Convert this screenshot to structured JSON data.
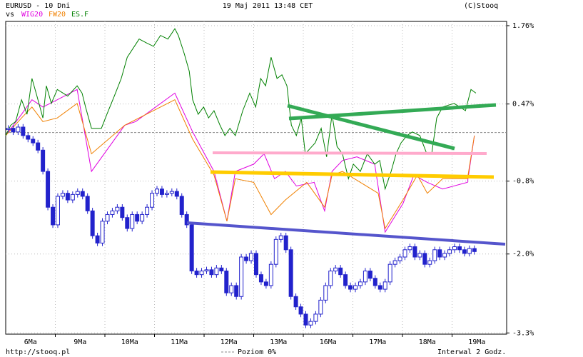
{
  "chart_data": {
    "type": "candlestick",
    "title": "EURUSD - 10 Dni",
    "vs_label": "vs",
    "date_label": "19 Maj 2011 13:48 CET",
    "copyright": "(C)Stooq",
    "source": "http://stooq.pl",
    "interval": "Interwal 2 Godz.",
    "reference": {
      "label": "Poziom 0%",
      "value": 0
    },
    "xlim": [
      0,
      10.1
    ],
    "xticks": [
      1,
      2,
      3,
      4,
      5,
      6,
      7,
      8,
      9
    ],
    "categories": [
      "6Ma",
      "9Ma",
      "10Ma",
      "11Ma",
      "12Ma",
      "13Ma",
      "16Ma",
      "17Ma",
      "18Ma",
      "19Ma"
    ],
    "ylim": [
      -3.32,
      1.83
    ],
    "yticks": [
      {
        "value": 1.76,
        "label": "1.76%"
      },
      {
        "value": 0.47,
        "label": "0.47%"
      },
      {
        "value": -0.8,
        "label": "-0.8%"
      },
      {
        "value": -2.0,
        "label": "-2.0%"
      },
      {
        "value": -3.3,
        "label": "-3.3%"
      }
    ],
    "grid": true,
    "candles": {
      "color": "#2222cc",
      "x": [
        0.05,
        0.15,
        0.25,
        0.35,
        0.45,
        0.55,
        0.65,
        0.75,
        0.85,
        0.95,
        1.05,
        1.15,
        1.25,
        1.35,
        1.45,
        1.55,
        1.65,
        1.75,
        1.85,
        1.95,
        2.05,
        2.15,
        2.25,
        2.35,
        2.45,
        2.55,
        2.65,
        2.75,
        2.85,
        2.95,
        3.05,
        3.15,
        3.25,
        3.35,
        3.45,
        3.55,
        3.65,
        3.75,
        3.85,
        3.95,
        4.05,
        4.15,
        4.25,
        4.35,
        4.45,
        4.55,
        4.65,
        4.75,
        4.85,
        4.95,
        5.05,
        5.15,
        5.25,
        5.35,
        5.45,
        5.55,
        5.65,
        5.75,
        5.85,
        5.95,
        6.05,
        6.15,
        6.25,
        6.35,
        6.45,
        6.55,
        6.65,
        6.75,
        6.85,
        6.95,
        7.05,
        7.15,
        7.25,
        7.35,
        7.45,
        7.55,
        7.65,
        7.75,
        7.85,
        7.95,
        8.05,
        8.15,
        8.25,
        8.35,
        8.45,
        8.55,
        8.65,
        8.75,
        8.85,
        8.95,
        9.05,
        9.15,
        9.25,
        9.35,
        9.45
      ],
      "open": [
        0.05,
        0.07,
        0.01,
        0.09,
        -0.05,
        -0.11,
        -0.17,
        -0.29,
        -0.64,
        -1.23,
        -1.52,
        -1.05,
        -1.0,
        -1.11,
        -1.02,
        -0.97,
        -1.05,
        -1.29,
        -1.7,
        -1.82,
        -1.46,
        -1.35,
        -1.29,
        -1.23,
        -1.4,
        -1.58,
        -1.35,
        -1.46,
        -1.35,
        -1.23,
        -1.0,
        -0.93,
        -1.02,
        -1.0,
        -0.97,
        -1.05,
        -1.35,
        -1.52,
        -2.28,
        -2.34,
        -2.28,
        -2.26,
        -2.34,
        -2.23,
        -2.28,
        -2.64,
        -2.52,
        -2.7,
        -2.05,
        -2.11,
        -1.99,
        -2.34,
        -2.46,
        -2.52,
        -2.17,
        -1.76,
        -1.7,
        -1.93,
        -2.7,
        -2.87,
        -2.99,
        -3.17,
        -3.11,
        -2.99,
        -2.76,
        -2.52,
        -2.28,
        -2.23,
        -2.34,
        -2.52,
        -2.58,
        -2.52,
        -2.46,
        -2.28,
        -2.4,
        -2.52,
        -2.58,
        -2.46,
        -2.17,
        -2.11,
        -2.05,
        -1.93,
        -1.88,
        -2.05,
        -1.99,
        -2.17,
        -2.11,
        -1.93,
        -2.05,
        -1.99,
        -1.93,
        -1.88,
        -1.93,
        -1.99,
        -1.91
      ],
      "close": [
        0.07,
        0.01,
        0.09,
        -0.05,
        -0.11,
        -0.17,
        -0.29,
        -0.64,
        -1.23,
        -1.52,
        -1.05,
        -1.0,
        -1.11,
        -1.02,
        -0.97,
        -1.05,
        -1.29,
        -1.7,
        -1.82,
        -1.46,
        -1.35,
        -1.29,
        -1.23,
        -1.4,
        -1.58,
        -1.35,
        -1.46,
        -1.35,
        -1.23,
        -1.0,
        -0.93,
        -1.02,
        -1.0,
        -0.97,
        -1.05,
        -1.35,
        -1.52,
        -2.28,
        -2.34,
        -2.28,
        -2.26,
        -2.34,
        -2.23,
        -2.28,
        -2.64,
        -2.52,
        -2.7,
        -2.05,
        -2.11,
        -1.99,
        -2.34,
        -2.46,
        -2.52,
        -2.17,
        -1.76,
        -1.7,
        -1.93,
        -2.7,
        -2.87,
        -2.99,
        -3.17,
        -3.11,
        -2.99,
        -2.76,
        -2.52,
        -2.28,
        -2.23,
        -2.34,
        -2.52,
        -2.58,
        -2.52,
        -2.46,
        -2.28,
        -2.4,
        -2.52,
        -2.58,
        -2.46,
        -2.17,
        -2.11,
        -2.05,
        -1.93,
        -1.88,
        -2.05,
        -1.99,
        -2.17,
        -2.11,
        -1.93,
        -2.05,
        -1.99,
        -1.93,
        -1.88,
        -1.93,
        -1.99,
        -1.91,
        -1.96
      ],
      "high": [
        0.12,
        0.12,
        0.14,
        0.14,
        0.0,
        -0.06,
        -0.12,
        -0.24,
        -0.59,
        -1.18,
        -1.0,
        -0.95,
        -0.95,
        -0.97,
        -0.92,
        -0.92,
        -1.0,
        -1.24,
        -1.65,
        -1.41,
        -1.3,
        -1.24,
        -1.18,
        -1.18,
        -1.35,
        -1.3,
        -1.3,
        -1.3,
        -1.18,
        -0.95,
        -0.88,
        -0.88,
        -0.95,
        -0.92,
        -0.92,
        -1.0,
        -1.3,
        -1.47,
        -2.23,
        -2.23,
        -2.21,
        -2.21,
        -2.18,
        -2.18,
        -2.23,
        -2.47,
        -2.47,
        -2.0,
        -2.0,
        -1.94,
        -1.94,
        -2.29,
        -2.41,
        -2.12,
        -1.71,
        -1.65,
        -1.65,
        -1.88,
        -2.65,
        -2.82,
        -2.94,
        -3.06,
        -2.94,
        -2.71,
        -2.47,
        -2.23,
        -2.18,
        -2.18,
        -2.29,
        -2.47,
        -2.47,
        -2.41,
        -2.23,
        -2.23,
        -2.35,
        -2.47,
        -2.41,
        -2.12,
        -2.06,
        -2.0,
        -1.88,
        -1.83,
        -1.83,
        -1.94,
        -1.94,
        -2.06,
        -1.88,
        -1.88,
        -1.94,
        -1.88,
        -1.83,
        -1.83,
        -1.88,
        -1.86,
        -1.86
      ],
      "low": [
        0.0,
        -0.04,
        -0.04,
        -0.1,
        -0.16,
        -0.22,
        -0.34,
        -0.69,
        -1.28,
        -1.57,
        -1.57,
        -1.1,
        -1.16,
        -1.16,
        -1.07,
        -1.1,
        -1.34,
        -1.75,
        -1.87,
        -1.87,
        -1.51,
        -1.4,
        -1.34,
        -1.45,
        -1.63,
        -1.63,
        -1.51,
        -1.51,
        -1.4,
        -1.28,
        -1.05,
        -1.07,
        -1.07,
        -1.05,
        -1.1,
        -1.4,
        -1.57,
        -2.33,
        -2.39,
        -2.39,
        -2.33,
        -2.39,
        -2.39,
        -2.33,
        -2.69,
        -2.69,
        -2.75,
        -2.75,
        -2.16,
        -2.16,
        -2.39,
        -2.51,
        -2.57,
        -2.57,
        -2.22,
        -1.81,
        -1.98,
        -2.75,
        -2.92,
        -3.04,
        -3.22,
        -3.22,
        -3.16,
        -3.04,
        -2.81,
        -2.57,
        -2.33,
        -2.39,
        -2.57,
        -2.63,
        -2.63,
        -2.57,
        -2.51,
        -2.45,
        -2.57,
        -2.63,
        -2.63,
        -2.51,
        -2.22,
        -2.16,
        -2.1,
        -1.98,
        -2.1,
        -2.1,
        -2.22,
        -2.22,
        -2.16,
        -2.1,
        -2.1,
        -2.04,
        -1.98,
        -1.98,
        -2.04,
        -2.04,
        -2.01
      ]
    },
    "series": [
      {
        "name": "WIG20",
        "color": "#e000e0",
        "x": [
          0,
          0.32,
          0.53,
          0.75,
          1.04,
          1.44,
          1.73,
          2.4,
          2.62,
          3.41,
          3.77,
          4.2,
          4.46,
          4.63,
          5.0,
          5.21,
          5.42,
          5.64,
          5.86,
          6.22,
          6.43,
          6.58,
          6.79,
          7.08,
          7.44,
          7.65,
          8.01,
          8.23,
          8.5,
          8.81,
          9.31,
          9.45
        ],
        "values": [
          -0.05,
          0.3,
          0.54,
          0.42,
          0.54,
          0.71,
          -0.64,
          0.12,
          0.18,
          0.65,
          0.01,
          -0.64,
          -1.46,
          -0.64,
          -0.52,
          -0.35,
          -0.76,
          -0.64,
          -0.88,
          -0.82,
          -1.29,
          -0.64,
          -0.46,
          -0.4,
          -0.52,
          -1.64,
          -1.17,
          -0.7,
          -0.82,
          -0.93,
          -0.82,
          -0.05
        ]
      },
      {
        "name": "FW20",
        "color": "#f08000",
        "x": [
          0,
          0.32,
          0.53,
          0.75,
          1.04,
          1.44,
          1.73,
          2.4,
          3.41,
          3.77,
          4.2,
          4.46,
          4.63,
          5.0,
          5.35,
          5.64,
          6.07,
          6.43,
          6.58,
          6.79,
          7.15,
          7.51,
          7.65,
          8.01,
          8.3,
          8.5,
          8.81,
          9.31,
          9.45
        ],
        "values": [
          -0.05,
          0.24,
          0.42,
          0.18,
          0.24,
          0.48,
          -0.35,
          0.12,
          0.54,
          -0.11,
          -0.7,
          -1.46,
          -0.76,
          -0.82,
          -1.35,
          -1.11,
          -0.82,
          -1.23,
          -0.7,
          -0.64,
          -0.82,
          -1.0,
          -1.58,
          -1.11,
          -0.7,
          -1.0,
          -0.76,
          -0.76,
          -0.05
        ]
      },
      {
        "name": "ES.F",
        "color": "#008000",
        "x": [
          0,
          0.1,
          0.2,
          0.32,
          0.43,
          0.53,
          0.63,
          0.75,
          0.82,
          0.92,
          1.04,
          1.25,
          1.44,
          1.54,
          1.61,
          1.73,
          1.93,
          2.04,
          2.19,
          2.33,
          2.45,
          2.69,
          2.83,
          2.98,
          3.12,
          3.27,
          3.41,
          3.48,
          3.6,
          3.7,
          3.77,
          3.88,
          3.99,
          4.09,
          4.2,
          4.32,
          4.42,
          4.52,
          4.63,
          4.78,
          4.92,
          5.04,
          5.14,
          5.24,
          5.35,
          5.47,
          5.57,
          5.67,
          5.76,
          5.86,
          5.96,
          6.04,
          6.24,
          6.36,
          6.47,
          6.58,
          6.68,
          6.79,
          6.91,
          7.01,
          7.15,
          7.29,
          7.44,
          7.54,
          7.65,
          7.77,
          7.87,
          7.97,
          8.09,
          8.2,
          8.35,
          8.49,
          8.59,
          8.69,
          8.81,
          9.04,
          9.27,
          9.38,
          9.48
        ],
        "values": [
          -0.05,
          0.12,
          0.18,
          0.54,
          0.3,
          0.89,
          0.6,
          0.24,
          0.77,
          0.48,
          0.71,
          0.6,
          0.77,
          0.65,
          0.42,
          0.07,
          0.07,
          0.3,
          0.6,
          0.89,
          1.24,
          1.54,
          1.48,
          1.42,
          1.6,
          1.54,
          1.71,
          1.6,
          1.3,
          1.01,
          0.54,
          0.3,
          0.42,
          0.24,
          0.36,
          0.12,
          -0.05,
          0.07,
          -0.05,
          0.36,
          0.65,
          0.42,
          0.89,
          0.77,
          1.24,
          0.89,
          0.95,
          0.77,
          0.12,
          -0.05,
          0.24,
          -0.35,
          -0.17,
          0.07,
          -0.4,
          0.3,
          -0.23,
          -0.35,
          -0.76,
          -0.52,
          -0.64,
          -0.35,
          -0.52,
          -0.46,
          -0.93,
          -0.64,
          -0.35,
          -0.17,
          -0.05,
          0.01,
          -0.05,
          -0.35,
          -0.35,
          0.24,
          0.42,
          0.48,
          0.36,
          0.71,
          0.65
        ]
      }
    ]
  }
}
